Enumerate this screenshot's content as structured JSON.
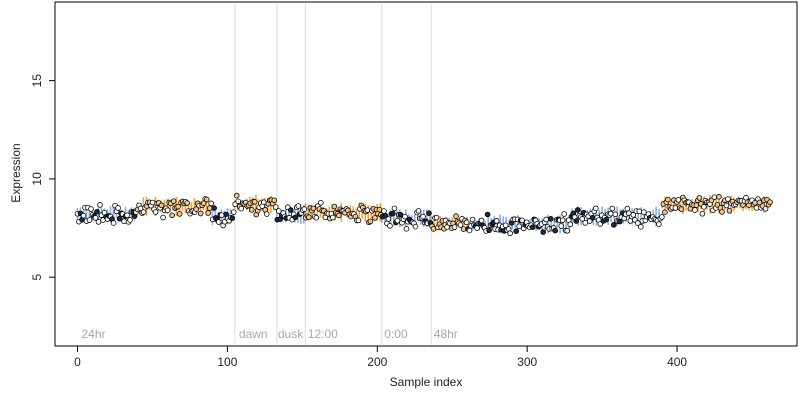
{
  "chart_data": {
    "type": "scatter",
    "title": "",
    "xlabel": "Sample index",
    "ylabel": "Expression",
    "xlim": [
      -15,
      480
    ],
    "ylim": [
      1.5,
      19
    ],
    "x_ticks": [
      0,
      100,
      200,
      300,
      400
    ],
    "y_ticks": [
      5,
      10,
      15
    ],
    "grid": false,
    "colors": {
      "point_fill": "#ffffff",
      "point_stroke": "#000000",
      "light_fill": "#f2c58a",
      "dark_fill": "#1e2a3a",
      "light_line": "#f0a040",
      "dark_line": "#8ab0e0",
      "period_line": "#dddddd",
      "period_text": "#a8a8a8"
    },
    "period_lines": [
      105,
      133,
      152,
      203,
      236
    ],
    "period_labels": [
      {
        "x": 2,
        "label": "24hr"
      },
      {
        "x": 107,
        "label": "dawn"
      },
      {
        "x": 133,
        "label": "dusk"
      },
      {
        "x": 153,
        "label": "12:00"
      },
      {
        "x": 204,
        "label": "0:00"
      },
      {
        "x": 237,
        "label": "48hr"
      }
    ],
    "segments": [
      {
        "x_start": 0,
        "x_end": 40,
        "baseline": 8.2,
        "phase": "dark"
      },
      {
        "x_start": 40,
        "x_end": 90,
        "baseline": 8.6,
        "phase": "light"
      },
      {
        "x_start": 90,
        "x_end": 105,
        "baseline": 8.1,
        "phase": "dark"
      },
      {
        "x_start": 105,
        "x_end": 133,
        "baseline": 8.7,
        "phase": "light"
      },
      {
        "x_start": 133,
        "x_end": 152,
        "baseline": 8.2,
        "phase": "dark"
      },
      {
        "x_start": 152,
        "x_end": 203,
        "baseline": 8.3,
        "phase": "light"
      },
      {
        "x_start": 203,
        "x_end": 236,
        "baseline": 8.0,
        "phase": "dark"
      },
      {
        "x_start": 236,
        "x_end": 260,
        "baseline": 7.8,
        "phase": "light"
      },
      {
        "x_start": 260,
        "x_end": 330,
        "baseline": 7.7,
        "phase": "dark"
      },
      {
        "x_start": 330,
        "x_end": 390,
        "baseline": 8.1,
        "phase": "dark"
      },
      {
        "x_start": 390,
        "x_end": 462,
        "baseline": 8.7,
        "phase": "light"
      }
    ],
    "n_points": 462,
    "x_range": [
      0,
      462
    ]
  }
}
